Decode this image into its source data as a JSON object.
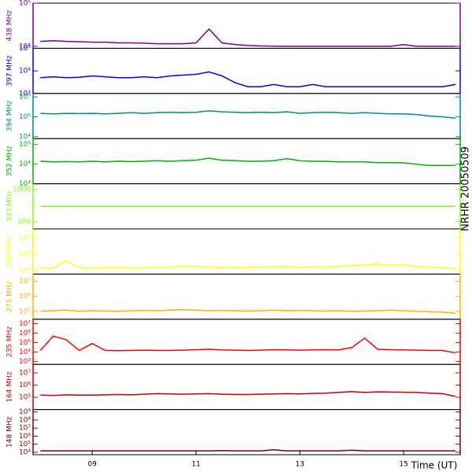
{
  "chart_data": {
    "type": "line",
    "log_y": true,
    "side_label": "NRHR 20050509",
    "xlabel": "Time (UT)",
    "xlim": [
      7.86,
      16.09
    ],
    "xticks": [
      {
        "value": 9,
        "label": "09"
      },
      11,
      13,
      15
    ],
    "x": [
      8.0,
      8.25,
      8.5,
      8.75,
      9.0,
      9.25,
      9.5,
      9.75,
      10.0,
      10.25,
      10.5,
      10.75,
      11.0,
      11.25,
      11.5,
      11.75,
      12.0,
      12.25,
      12.5,
      12.75,
      13.0,
      13.25,
      13.5,
      13.75,
      14.0,
      14.25,
      14.5,
      14.75,
      15.0,
      15.25,
      15.5,
      15.75,
      16.0
    ],
    "series": [
      {
        "name": "438 MHz",
        "color": "#800080",
        "ylim": [
          9000,
          100000
        ],
        "yticks": [
          {
            "value": 10000,
            "label": "10⁴"
          },
          {
            "value": 100000,
            "label": "10⁵"
          }
        ],
        "values": [
          13000,
          13500,
          13000,
          12800,
          12500,
          12500,
          12000,
          12000,
          11800,
          11500,
          11500,
          11500,
          12000,
          25000,
          12000,
          11000,
          10500,
          10200,
          10100,
          10000,
          10000,
          10000,
          10000,
          10000,
          10000,
          10000,
          10000,
          10000,
          11000,
          10000,
          10000,
          10000,
          10000
        ]
      },
      {
        "name": "397 MHz",
        "color": "#0000ff",
        "ylim": [
          1000,
          100000
        ],
        "yticks": [
          {
            "value": 1000,
            "label": "10³"
          },
          {
            "value": 10000,
            "label": "10⁴"
          },
          {
            "value": 100000,
            "label": "10⁵"
          }
        ],
        "values": [
          5000,
          5500,
          5000,
          5200,
          6000,
          5500,
          5000,
          5000,
          5500,
          5000,
          6000,
          6500,
          7000,
          9000,
          6000,
          3000,
          2000,
          2000,
          2500,
          2000,
          2000,
          2500,
          2000,
          2000,
          2000,
          2000,
          2000,
          2000,
          2000,
          2000,
          2000,
          2000,
          2500
        ]
      },
      {
        "name": "394 MHz",
        "color": "#008b8b",
        "ylim": [
          8000,
          1500000
        ],
        "yticks": [
          {
            "value": 10000,
            "label": "10⁴"
          },
          {
            "value": 100000,
            "label": "10⁵"
          },
          {
            "value": 1000000,
            "label": "10⁶"
          }
        ],
        "values": [
          150000,
          140000,
          150000,
          145000,
          150000,
          140000,
          150000,
          160000,
          150000,
          160000,
          170000,
          160000,
          170000,
          200000,
          180000,
          170000,
          160000,
          170000,
          160000,
          180000,
          150000,
          160000,
          170000,
          160000,
          150000,
          160000,
          150000,
          140000,
          140000,
          130000,
          110000,
          100000,
          85000
        ]
      },
      {
        "name": "352 MHz",
        "color": "#00b000",
        "ylim": [
          1000,
          200000
        ],
        "yticks": [
          {
            "value": 1000,
            "label": "10³"
          },
          {
            "value": 10000,
            "label": "10⁴"
          },
          {
            "value": 100000,
            "label": "10⁵"
          }
        ],
        "values": [
          14000,
          13000,
          13500,
          13000,
          14000,
          13000,
          14000,
          13500,
          14000,
          15000,
          14000,
          15000,
          16000,
          20000,
          16000,
          15000,
          14000,
          14000,
          15000,
          19000,
          15000,
          14000,
          14000,
          13000,
          13000,
          13000,
          12000,
          12000,
          11500,
          10000,
          8500,
          8500,
          8500
        ]
      },
      {
        "name": "333 MHz",
        "color": "#80ff00",
        "ylim": [
          60,
          1500
        ],
        "yticks": [
          100,
          1000
        ],
        "values": [
          300,
          300,
          300,
          300,
          300,
          300,
          300,
          300,
          300,
          300,
          300,
          300,
          300,
          300,
          300,
          300,
          300,
          300,
          300,
          300,
          300,
          300,
          300,
          300,
          300,
          300,
          300,
          300,
          300,
          300,
          300,
          300,
          300
        ]
      },
      {
        "name": "298 MHz",
        "color": "#ffff00",
        "ylim": [
          6000,
          4000000
        ],
        "yticks": [
          {
            "value": 10000,
            "label": "10⁴"
          },
          {
            "value": 100000,
            "label": "10⁵"
          },
          {
            "value": 1000000,
            "label": "10⁶"
          }
        ],
        "values": [
          15000,
          14000,
          40000,
          15000,
          14000,
          15000,
          16000,
          14000,
          15000,
          16000,
          15000,
          20000,
          18000,
          16000,
          15000,
          16000,
          15000,
          17000,
          16000,
          18000,
          15000,
          17000,
          16000,
          18000,
          20000,
          22000,
          25000,
          20000,
          22000,
          18000,
          16000,
          15000,
          13000
        ]
      },
      {
        "name": "271 MHz",
        "color": "#ffb000",
        "ylim": [
          30000,
          30000000
        ],
        "yticks": [
          {
            "value": 100000,
            "label": "10⁵"
          },
          {
            "value": 1000000,
            "label": "10⁶"
          },
          {
            "value": 10000000,
            "label": "10⁷"
          }
        ],
        "values": [
          100000,
          110000,
          120000,
          100000,
          110000,
          105000,
          100000,
          110000,
          115000,
          110000,
          120000,
          130000,
          120000,
          110000,
          115000,
          110000,
          105000,
          110000,
          120000,
          110000,
          115000,
          110000,
          105000,
          110000,
          100000,
          105000,
          110000,
          120000,
          110000,
          100000,
          95000,
          90000,
          75000
        ]
      },
      {
        "name": "235 MHz",
        "color": "#ff0000",
        "ylim": [
          500,
          30000000
        ],
        "yticks": [
          {
            "value": 1000,
            "label": "10³"
          },
          {
            "value": 10000,
            "label": "10⁴"
          },
          {
            "value": 100000,
            "label": "10⁵"
          },
          {
            "value": 1000000,
            "label": "10⁶"
          },
          {
            "value": 10000000,
            "label": "10⁷"
          }
        ],
        "values": [
          15000,
          500000,
          200000,
          15000,
          80000,
          15000,
          14000,
          15000,
          16000,
          15000,
          15000,
          16000,
          18000,
          20000,
          17000,
          16000,
          15000,
          16000,
          18000,
          17000,
          16000,
          17000,
          18000,
          17000,
          30000,
          300000,
          20000,
          18000,
          17000,
          16000,
          15000,
          15000,
          8000
        ]
      },
      {
        "name": "164 MHz",
        "color": "#cc0000",
        "ylim": [
          10000,
          50000000
        ],
        "yticks": [
          {
            "value": 100000,
            "label": "10⁵"
          },
          {
            "value": 1000000,
            "label": "10⁶"
          },
          {
            "value": 10000000,
            "label": "10⁷"
          }
        ],
        "values": [
          150000,
          140000,
          160000,
          150000,
          150000,
          160000,
          170000,
          160000,
          180000,
          200000,
          190000,
          180000,
          190000,
          200000,
          180000,
          170000,
          170000,
          180000,
          190000,
          200000,
          190000,
          210000,
          220000,
          250000,
          300000,
          250000,
          280000,
          270000,
          260000,
          250000,
          220000,
          200000,
          120000
        ]
      },
      {
        "name": "148 MHz",
        "color": "#800000",
        "ylim": [
          5000,
          2000000000
        ],
        "yticks": [
          {
            "value": 10000,
            "label": "10⁴"
          },
          {
            "value": 100000,
            "label": "10⁵"
          },
          {
            "value": 1000000,
            "label": "10⁶"
          },
          {
            "value": 10000000,
            "label": "10⁷"
          },
          {
            "value": 100000000,
            "label": "10⁸"
          },
          {
            "value": 1000000000,
            "label": "10⁹"
          }
        ],
        "values": [
          15000,
          15000,
          15000,
          15000,
          15000,
          15000,
          15000,
          15000,
          15000,
          15000,
          15000,
          15000,
          15000,
          15000,
          16000,
          15000,
          15000,
          15000,
          20000,
          15000,
          15000,
          15000,
          15000,
          15000,
          18000,
          15000,
          15000,
          15000,
          15000,
          15000,
          15000,
          15000,
          15000
        ]
      }
    ]
  }
}
